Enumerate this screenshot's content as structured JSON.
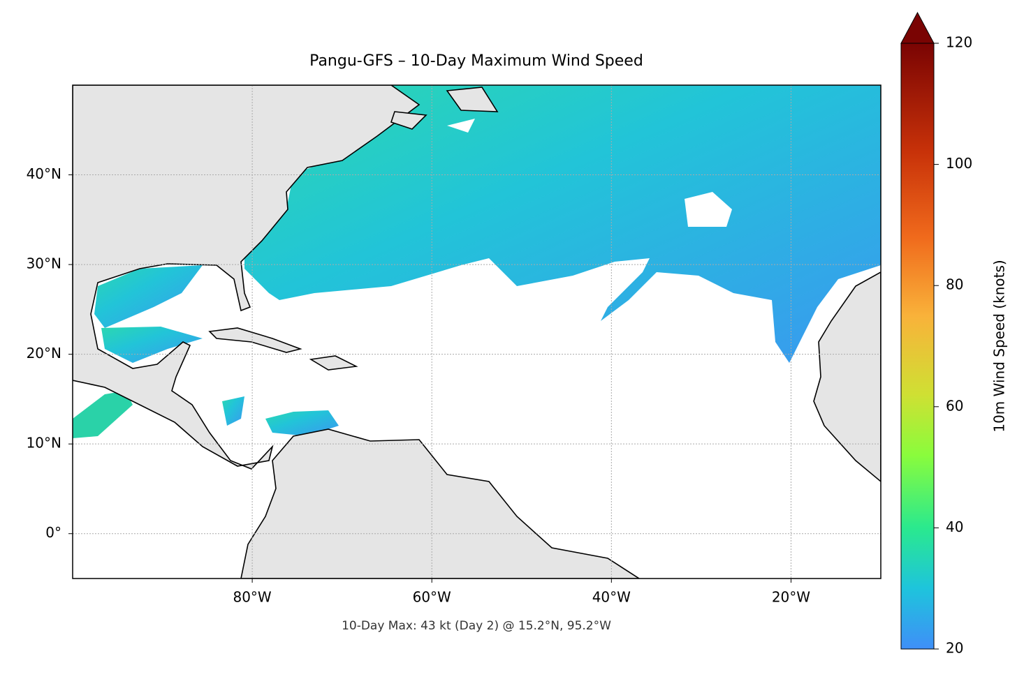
{
  "chart_data": {
    "type": "map",
    "title": "Pangu-GFS – 10-Day Maximum Wind Speed",
    "annotation": "10-Day Max: 43 kt (Day 2) @ 15.2°N, 95.2°W",
    "xlim": [
      -100,
      -10
    ],
    "ylim": [
      -5,
      50
    ],
    "xticks": [
      {
        "value": -80,
        "label": "80°W"
      },
      {
        "value": -60,
        "label": "60°W"
      },
      {
        "value": -40,
        "label": "40°W"
      },
      {
        "value": -20,
        "label": "20°W"
      }
    ],
    "yticks": [
      {
        "value": 0,
        "label": "0°"
      },
      {
        "value": 10,
        "label": "10°N"
      },
      {
        "value": 20,
        "label": "20°N"
      },
      {
        "value": 30,
        "label": "30°N"
      },
      {
        "value": 40,
        "label": "40°N"
      }
    ],
    "grid": true,
    "colorbar_label": "10m Wind Speed (knots)",
    "clim": [
      20,
      120
    ],
    "cticks": [
      20,
      40,
      60,
      80,
      100,
      120
    ],
    "extend": "max"
  }
}
